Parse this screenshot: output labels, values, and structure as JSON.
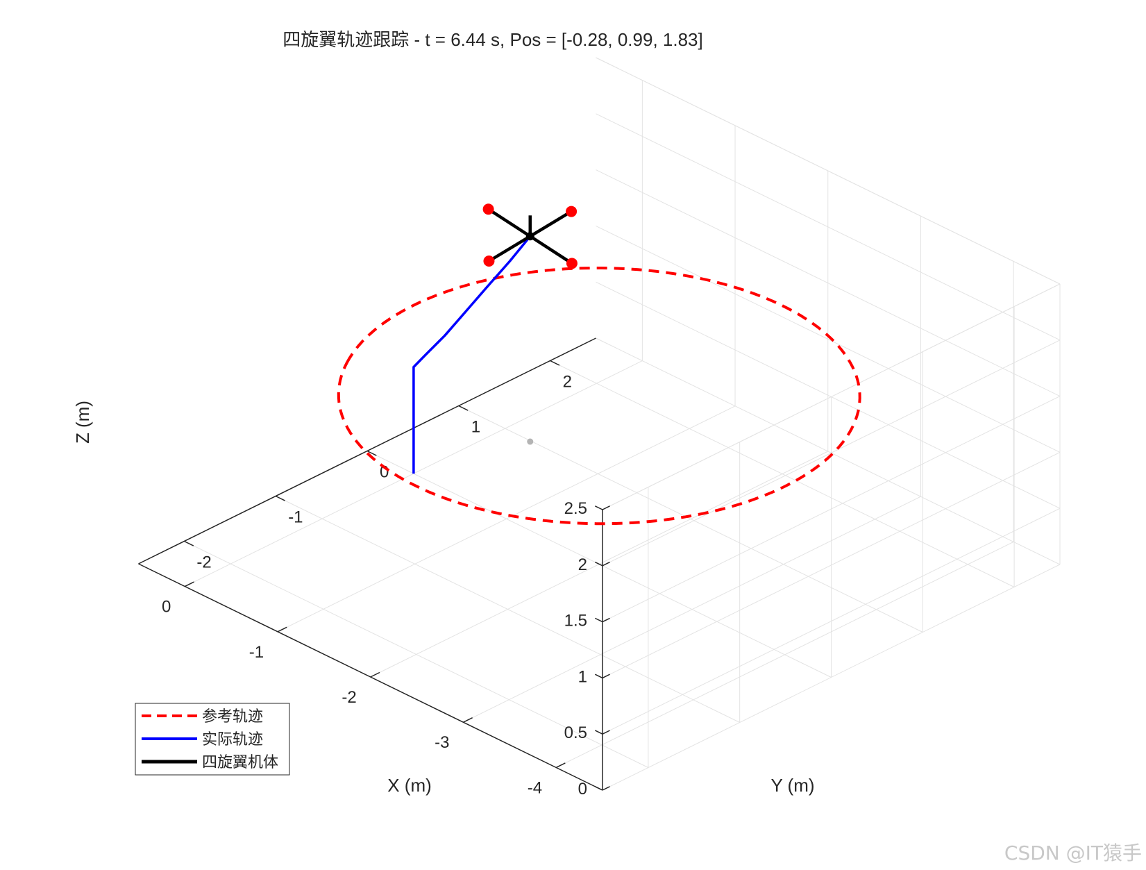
{
  "watermark": "CSDN @IT猿手",
  "chart_data": {
    "type": "line3d",
    "title": "四旋翼轨迹跟踪 - t = 6.44 s, Pos = [-0.28, 0.99, 1.83]",
    "xlabel": "X (m)",
    "ylabel": "Y (m)",
    "zlabel": "Z (m)",
    "xlim": [
      -4.5,
      0.5
    ],
    "ylim": [
      -2.5,
      2.5
    ],
    "zlim": [
      0,
      2.5
    ],
    "x_ticks": [
      "-4",
      "-3",
      "-2",
      "-1",
      "0"
    ],
    "y_ticks": [
      "-2",
      "-1",
      "0",
      "1",
      "2"
    ],
    "z_ticks": [
      "0",
      "0.5",
      "1",
      "1.5",
      "2",
      "2.5"
    ],
    "grid": true,
    "legend_position": "bottom-left",
    "series": [
      {
        "name": "参考轨迹",
        "style": "dashed",
        "color": "#ff0000",
        "circle": {
          "center": [
            -2,
            0,
            1.5
          ],
          "radius": 2,
          "start_angle_deg": -30,
          "end_angle_deg": 330
        }
      },
      {
        "name": "实际轨迹",
        "style": "solid",
        "color": "#0000ff",
        "points": [
          [
            0,
            0,
            0
          ],
          [
            0,
            0,
            0.95
          ],
          [
            -0.03,
            0.1,
            1.03
          ],
          [
            -0.07,
            0.27,
            1.15
          ],
          [
            -0.11,
            0.45,
            1.3
          ],
          [
            -0.16,
            0.64,
            1.47
          ],
          [
            -0.22,
            0.83,
            1.65
          ],
          [
            -0.28,
            0.99,
            1.83
          ]
        ]
      },
      {
        "name": "四旋翼机体",
        "style": "solid",
        "color": "#000000",
        "center": [
          -0.28,
          0.99,
          1.83
        ],
        "arm_length": 0.45
      }
    ]
  }
}
